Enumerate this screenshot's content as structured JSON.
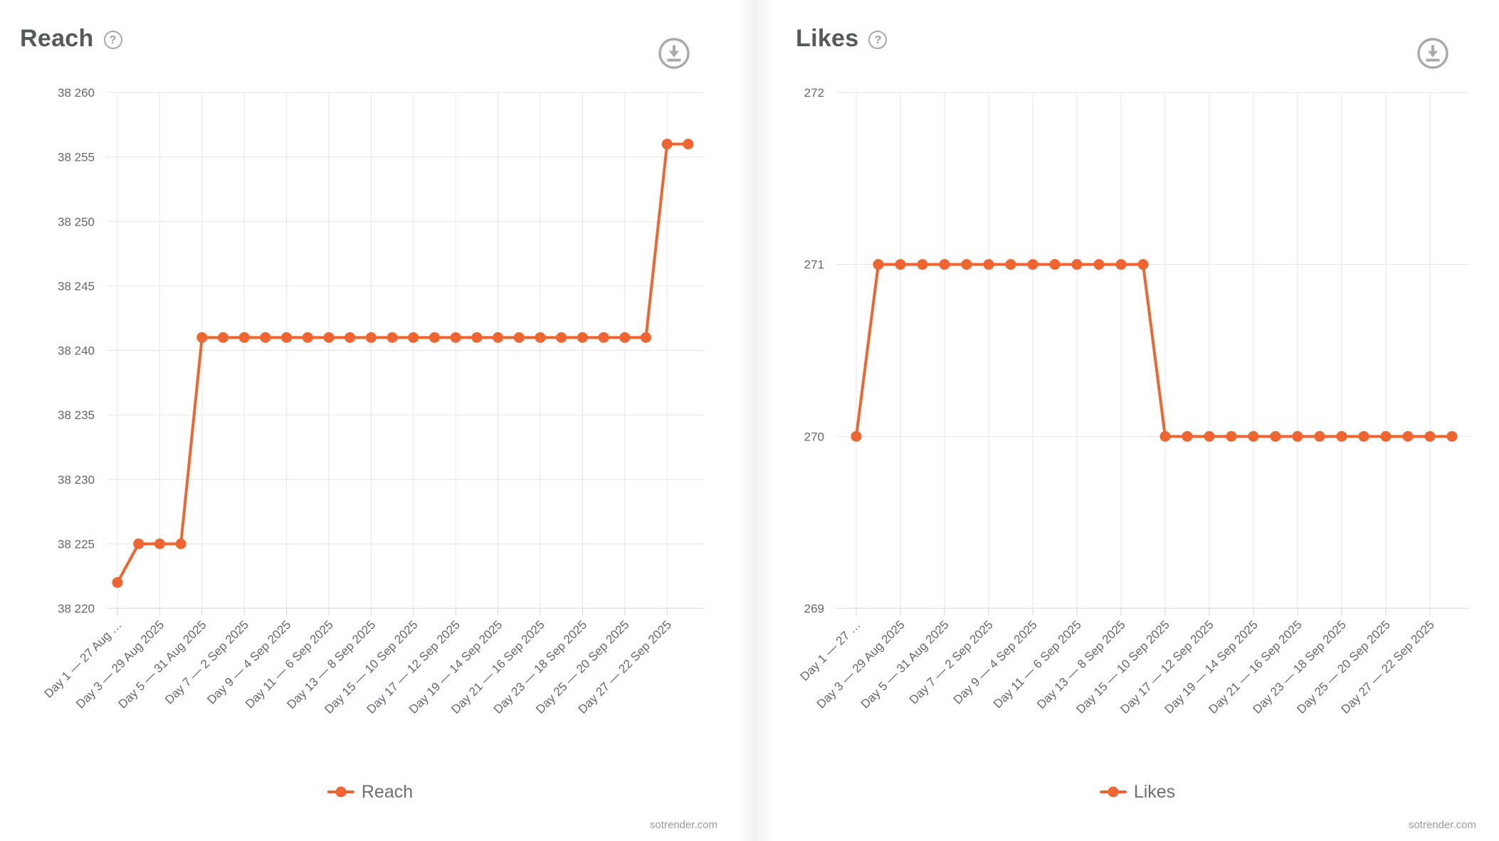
{
  "icons": {
    "help_glyph": "?"
  },
  "chart_data": [
    {
      "type": "line",
      "title": "Reach",
      "legend_label": "Reach",
      "footer": "sotrender.com",
      "series_color": "#f0652f",
      "grid": true,
      "legend_position": "bottom-center",
      "x_label_rotation": -45,
      "n_points": 28,
      "x_tick_labels": [
        "Day 1 — 27 Aug …",
        "Day 3 — 29 Aug 2025",
        "Day 5 — 31 Aug 2025",
        "Day 7 — 2 Sep 2025",
        "Day 9 — 4 Sep 2025",
        "Day 11 — 6 Sep 2025",
        "Day 13 — 8 Sep 2025",
        "Day 15 — 10 Sep 2025",
        "Day 17 — 12 Sep 2025",
        "Day 19 — 14 Sep 2025",
        "Day 21 — 16 Sep 2025",
        "Day 23 — 18 Sep 2025",
        "Day 25 — 20 Sep 2025",
        "Day 27 — 22 Sep 2025"
      ],
      "values": [
        38222,
        38225,
        38225,
        38225,
        38241,
        38241,
        38241,
        38241,
        38241,
        38241,
        38241,
        38241,
        38241,
        38241,
        38241,
        38241,
        38241,
        38241,
        38241,
        38241,
        38241,
        38241,
        38241,
        38241,
        38241,
        38241,
        38256,
        38256
      ],
      "ylim": [
        38220,
        38260
      ],
      "y_tick_step": 5,
      "y_tick_labels": [
        "38 260",
        "38 255",
        "38 250",
        "38 245",
        "38 240",
        "38 235",
        "38 230",
        "38 225",
        "38 220"
      ]
    },
    {
      "type": "line",
      "title": "Likes",
      "legend_label": "Likes",
      "footer": "sotrender.com",
      "series_color": "#f0652f",
      "grid": true,
      "legend_position": "bottom-center",
      "x_label_rotation": -45,
      "n_points": 28,
      "x_tick_labels": [
        "Day 1 — 27 …",
        "Day 3 — 29 Aug 2025",
        "Day 5 — 31 Aug 2025",
        "Day 7 — 2 Sep 2025",
        "Day 9 — 4 Sep 2025",
        "Day 11 — 6 Sep 2025",
        "Day 13 — 8 Sep 2025",
        "Day 15 — 10 Sep 2025",
        "Day 17 — 12 Sep 2025",
        "Day 19 — 14 Sep 2025",
        "Day 21 — 16 Sep 2025",
        "Day 23 — 18 Sep 2025",
        "Day 25 — 20 Sep 2025",
        "Day 27 — 22 Sep 2025"
      ],
      "values": [
        270,
        271,
        271,
        271,
        271,
        271,
        271,
        271,
        271,
        271,
        271,
        271,
        271,
        271,
        270,
        270,
        270,
        270,
        270,
        270,
        270,
        270,
        270,
        270,
        270,
        270,
        270,
        270
      ],
      "ylim": [
        269,
        272
      ],
      "y_tick_step": 1,
      "y_tick_labels": [
        "272",
        "271",
        "270",
        "269"
      ]
    }
  ]
}
